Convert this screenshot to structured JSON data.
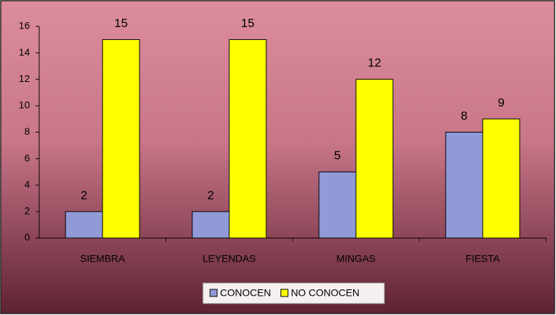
{
  "chart_data": {
    "type": "bar",
    "categories": [
      "SIEMBRA",
      "LEYENDAS",
      "MINGAS",
      "FIESTA"
    ],
    "series": [
      {
        "name": "CONOCEN",
        "color": "#9199d6",
        "values": [
          2,
          2,
          5,
          8
        ]
      },
      {
        "name": "NO CONOCEN",
        "color": "#ffff00",
        "values": [
          15,
          15,
          12,
          9
        ]
      }
    ],
    "ylim": [
      0,
      16
    ],
    "yticks": [
      0,
      2,
      4,
      6,
      8,
      10,
      12,
      14,
      16
    ],
    "legend": "bottom",
    "data_labels": true
  }
}
